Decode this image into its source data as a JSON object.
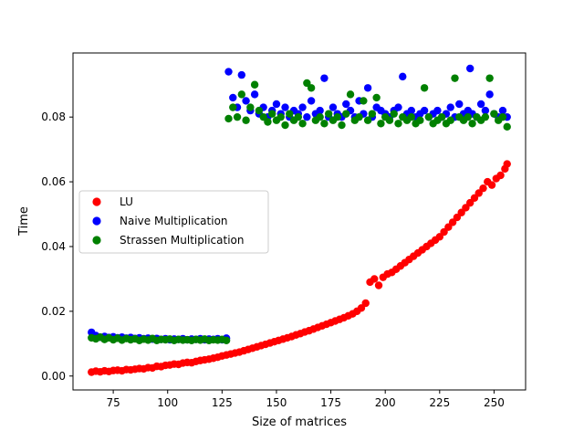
{
  "chart_data": {
    "type": "scatter",
    "title": "",
    "xlabel": "Size of matrices",
    "ylabel": "Time",
    "xlim": [
      56.5,
      264.5
    ],
    "ylim": [
      -0.0043,
      0.0998
    ],
    "xticks": [
      75,
      100,
      125,
      150,
      175,
      200,
      225,
      250
    ],
    "yticks": [
      0.0,
      0.02,
      0.04,
      0.06,
      0.08
    ],
    "ytick_labels": [
      "0.00",
      "0.02",
      "0.04",
      "0.06",
      "0.08"
    ],
    "grid": false,
    "legend_position": "center-left",
    "series": [
      {
        "name": "LU",
        "color": "#ff0000",
        "x": [
          65,
          67,
          69,
          71,
          73,
          75,
          77,
          79,
          81,
          83,
          85,
          87,
          89,
          91,
          93,
          95,
          97,
          99,
          101,
          103,
          105,
          107,
          109,
          111,
          113,
          115,
          117,
          119,
          121,
          123,
          125,
          127,
          129,
          131,
          133,
          135,
          137,
          139,
          141,
          143,
          145,
          147,
          149,
          151,
          153,
          155,
          157,
          159,
          161,
          163,
          165,
          167,
          169,
          171,
          173,
          175,
          177,
          179,
          181,
          183,
          185,
          187,
          189,
          191,
          193,
          195,
          197,
          199,
          201,
          203,
          205,
          207,
          209,
          211,
          213,
          215,
          217,
          219,
          221,
          223,
          225,
          227,
          229,
          231,
          233,
          235,
          237,
          239,
          241,
          243,
          245,
          247,
          249,
          251,
          253,
          255,
          256
        ],
        "y": [
          0.0012,
          0.0015,
          0.0013,
          0.0016,
          0.0014,
          0.0017,
          0.0018,
          0.0016,
          0.002,
          0.0019,
          0.0021,
          0.0023,
          0.0022,
          0.0026,
          0.0025,
          0.003,
          0.0029,
          0.0033,
          0.0034,
          0.0037,
          0.0036,
          0.004,
          0.0042,
          0.0041,
          0.0045,
          0.0048,
          0.005,
          0.0052,
          0.0055,
          0.0058,
          0.0062,
          0.0065,
          0.0068,
          0.0071,
          0.0074,
          0.0078,
          0.0082,
          0.0086,
          0.009,
          0.0094,
          0.0098,
          0.0102,
          0.0106,
          0.011,
          0.0114,
          0.0118,
          0.0122,
          0.0127,
          0.0131,
          0.0136,
          0.014,
          0.0145,
          0.015,
          0.0155,
          0.016,
          0.0165,
          0.017,
          0.0175,
          0.018,
          0.0186,
          0.0192,
          0.02,
          0.021,
          0.0225,
          0.029,
          0.03,
          0.028,
          0.0305,
          0.0315,
          0.032,
          0.033,
          0.034,
          0.035,
          0.036,
          0.037,
          0.038,
          0.039,
          0.04,
          0.041,
          0.042,
          0.043,
          0.0445,
          0.046,
          0.0475,
          0.049,
          0.0505,
          0.052,
          0.0535,
          0.055,
          0.0565,
          0.058,
          0.06,
          0.059,
          0.061,
          0.062,
          0.064,
          0.0655
        ]
      },
      {
        "name": "Naive Multiplication",
        "color": "#0000ff",
        "x": [
          65,
          67,
          69,
          71,
          73,
          75,
          77,
          79,
          81,
          83,
          85,
          87,
          89,
          91,
          93,
          95,
          97,
          99,
          101,
          103,
          105,
          107,
          109,
          111,
          113,
          115,
          117,
          119,
          121,
          123,
          125,
          127,
          128,
          130,
          132,
          134,
          136,
          138,
          140,
          142,
          144,
          146,
          148,
          150,
          152,
          154,
          156,
          158,
          160,
          162,
          164,
          166,
          168,
          170,
          172,
          174,
          176,
          178,
          180,
          182,
          184,
          186,
          188,
          190,
          192,
          194,
          196,
          198,
          200,
          202,
          204,
          206,
          208,
          210,
          212,
          214,
          216,
          218,
          220,
          222,
          224,
          226,
          228,
          230,
          232,
          234,
          236,
          238,
          239,
          240,
          242,
          244,
          246,
          248,
          250,
          252,
          254,
          256
        ],
        "y": [
          0.0135,
          0.0125,
          0.012,
          0.0122,
          0.0119,
          0.0121,
          0.0118,
          0.012,
          0.0117,
          0.0119,
          0.0116,
          0.0118,
          0.0115,
          0.0117,
          0.0114,
          0.0116,
          0.0113,
          0.0115,
          0.0112,
          0.0114,
          0.0113,
          0.0115,
          0.0112,
          0.0114,
          0.0113,
          0.0115,
          0.0112,
          0.0114,
          0.0113,
          0.0115,
          0.0112,
          0.0117,
          0.094,
          0.086,
          0.083,
          0.093,
          0.085,
          0.082,
          0.087,
          0.081,
          0.083,
          0.08,
          0.082,
          0.084,
          0.081,
          0.083,
          0.08,
          0.082,
          0.081,
          0.083,
          0.08,
          0.085,
          0.081,
          0.082,
          0.092,
          0.08,
          0.083,
          0.081,
          0.08,
          0.084,
          0.082,
          0.08,
          0.085,
          0.081,
          0.089,
          0.08,
          0.083,
          0.082,
          0.081,
          0.08,
          0.082,
          0.083,
          0.0925,
          0.081,
          0.082,
          0.08,
          0.081,
          0.082,
          0.08,
          0.081,
          0.082,
          0.08,
          0.081,
          0.083,
          0.08,
          0.084,
          0.081,
          0.082,
          0.095,
          0.081,
          0.08,
          0.084,
          0.082,
          0.087,
          0.081,
          0.08,
          0.082,
          0.08
        ]
      },
      {
        "name": "Strassen Multiplication",
        "color": "#008000",
        "x": [
          65,
          67,
          69,
          71,
          73,
          75,
          77,
          79,
          81,
          83,
          85,
          87,
          89,
          91,
          93,
          95,
          97,
          99,
          101,
          103,
          105,
          107,
          109,
          111,
          113,
          115,
          117,
          119,
          121,
          123,
          125,
          127,
          128,
          130,
          132,
          134,
          136,
          138,
          140,
          142,
          144,
          146,
          148,
          150,
          152,
          154,
          156,
          158,
          160,
          162,
          164,
          166,
          168,
          170,
          172,
          174,
          176,
          178,
          180,
          182,
          184,
          186,
          188,
          190,
          192,
          194,
          196,
          198,
          200,
          202,
          204,
          206,
          208,
          210,
          212,
          214,
          216,
          218,
          220,
          222,
          224,
          226,
          228,
          230,
          232,
          234,
          236,
          238,
          240,
          242,
          244,
          246,
          248,
          250,
          252,
          254,
          256
        ],
        "y": [
          0.0118,
          0.0115,
          0.012,
          0.0113,
          0.0118,
          0.0112,
          0.0117,
          0.0111,
          0.0116,
          0.0112,
          0.0115,
          0.011,
          0.0114,
          0.0111,
          0.0116,
          0.011,
          0.0113,
          0.0112,
          0.0114,
          0.011,
          0.0113,
          0.0111,
          0.0112,
          0.011,
          0.0113,
          0.0111,
          0.0114,
          0.011,
          0.0112,
          0.0111,
          0.0113,
          0.011,
          0.0795,
          0.083,
          0.08,
          0.087,
          0.079,
          0.083,
          0.09,
          0.082,
          0.08,
          0.0785,
          0.081,
          0.079,
          0.08,
          0.0775,
          0.081,
          0.079,
          0.08,
          0.078,
          0.0905,
          0.089,
          0.079,
          0.08,
          0.078,
          0.081,
          0.079,
          0.08,
          0.0775,
          0.081,
          0.087,
          0.079,
          0.08,
          0.085,
          0.079,
          0.081,
          0.086,
          0.078,
          0.08,
          0.079,
          0.081,
          0.078,
          0.08,
          0.079,
          0.08,
          0.078,
          0.079,
          0.089,
          0.08,
          0.078,
          0.079,
          0.08,
          0.078,
          0.079,
          0.092,
          0.08,
          0.079,
          0.08,
          0.078,
          0.08,
          0.079,
          0.08,
          0.092,
          0.081,
          0.079,
          0.08,
          0.077
        ]
      }
    ]
  }
}
